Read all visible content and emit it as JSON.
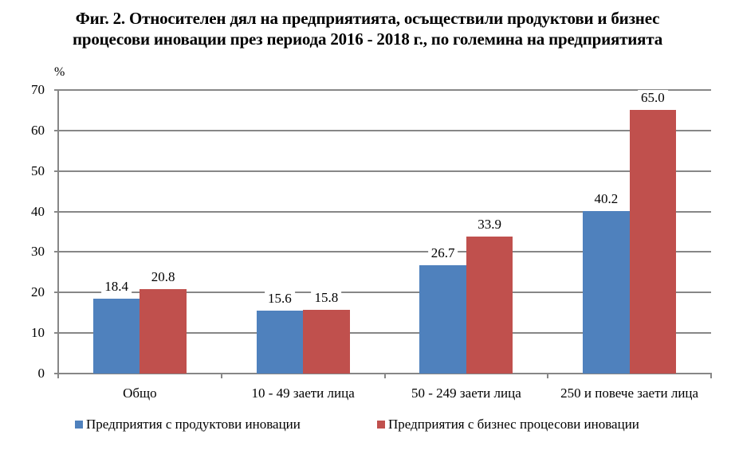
{
  "chart_data": {
    "type": "bar",
    "title": "Фиг. 2. Относителен дял на предприятията, осъществили продуктови и бизнес процесови иновации през периода 2016 - 2018 г., по големина на предприятията",
    "title_lines": [
      "Фиг. 2. Относителен дял на предприятията, осъществили продуктови и бизнес",
      "процесови иновации през периода 2016 - 2018 г., по големина на предприятията"
    ],
    "xlabel": "",
    "ylabel": "%",
    "ylim": [
      0,
      70
    ],
    "yticks": [
      0,
      10,
      20,
      30,
      40,
      50,
      60,
      70
    ],
    "grid": true,
    "legend_position": "bottom",
    "categories": [
      "Общо",
      "10 - 49 заети лица",
      "50 - 249 заети лица",
      "250 и повече заети лица"
    ],
    "series": [
      {
        "name": "Предприятия с продуктови иновации",
        "color": "#4f81bd",
        "values": [
          18.4,
          15.6,
          26.7,
          40.2
        ],
        "labels": [
          "18.4",
          "15.6",
          "26.7",
          "40.2"
        ]
      },
      {
        "name": "Предприятия с бизнес процесови иновации",
        "color": "#c0504d",
        "values": [
          20.8,
          15.8,
          33.9,
          65.0
        ],
        "labels": [
          "20.8",
          "15.8",
          "33.9",
          "65.0"
        ]
      }
    ]
  }
}
